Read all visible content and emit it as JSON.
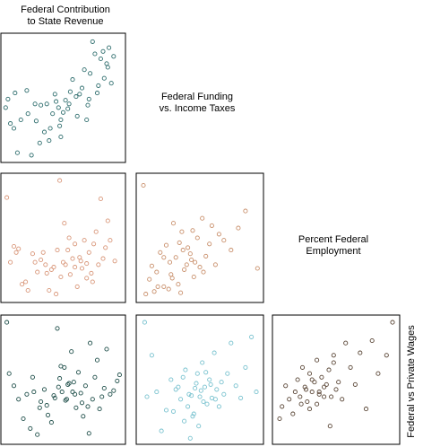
{
  "labels": {
    "v1_line1": "Federal Contribution",
    "v1_line2": "to State Revenue",
    "v2_line1": "Federal Funding",
    "v2_line2": "vs. Income Taxes",
    "v3_line1": "Percent Federal",
    "v3_line2": "Employment",
    "v4": "Federal vs Private Wages"
  },
  "colors": {
    "teal": "#2f6e6e",
    "salmon": "#d9977a",
    "sand": "#c9906c",
    "darkteal": "#1f4f4a",
    "lightblue": "#79c2cf",
    "brown": "#5a4636"
  },
  "chart_data": {
    "type": "scatter",
    "kind": "scatter-matrix-lower-triangle",
    "variables": [
      "Federal Contribution to State Revenue",
      "Federal Funding vs. Income Taxes",
      "Percent Federal Employment",
      "Federal vs Private Wages"
    ],
    "grid": false,
    "axis_tick_labels": false,
    "panels": [
      {
        "row": 1,
        "col": 1,
        "color_key": "teal",
        "x": [
          0.01,
          0.03,
          0.09,
          0.05,
          0.08,
          0.11,
          0.14,
          0.2,
          0.23,
          0.19,
          0.26,
          0.3,
          0.34,
          0.38,
          0.41,
          0.36,
          0.43,
          0.46,
          0.48,
          0.5,
          0.52,
          0.47,
          0.55,
          0.58,
          0.61,
          0.54,
          0.62,
          0.66,
          0.68,
          0.71,
          0.64,
          0.73,
          0.77,
          0.75,
          0.8,
          0.82,
          0.79,
          0.85,
          0.88,
          0.84,
          0.91,
          0.87,
          0.89,
          0.93,
          0.72,
          0.56,
          0.44,
          0.31,
          0.39,
          0.27,
          0.48,
          0.7
        ],
        "y": [
          0.42,
          0.49,
          0.54,
          0.29,
          0.25,
          0.05,
          0.32,
          0.37,
          0.03,
          0.56,
          0.45,
          0.13,
          0.22,
          0.15,
          0.37,
          0.45,
          0.53,
          0.42,
          0.32,
          0.38,
          0.48,
          0.27,
          0.45,
          0.65,
          0.51,
          0.41,
          0.35,
          0.58,
          0.73,
          0.44,
          0.53,
          0.7,
          0.86,
          0.96,
          0.6,
          0.82,
          0.54,
          0.66,
          0.75,
          0.88,
          0.62,
          0.78,
          0.91,
          0.84,
          0.49,
          0.55,
          0.47,
          0.44,
          0.25,
          0.31,
          0.18,
          0.32
        ]
      },
      {
        "row": 2,
        "col": 1,
        "color_key": "salmon",
        "x": [
          0.02,
          0.05,
          0.08,
          0.12,
          0.15,
          0.2,
          0.24,
          0.28,
          0.31,
          0.35,
          0.38,
          0.42,
          0.45,
          0.47,
          0.5,
          0.52,
          0.54,
          0.56,
          0.58,
          0.6,
          0.62,
          0.64,
          0.66,
          0.68,
          0.7,
          0.72,
          0.74,
          0.76,
          0.78,
          0.8,
          0.82,
          0.84,
          0.86,
          0.88,
          0.9,
          0.94,
          0.55,
          0.48,
          0.4,
          0.33,
          0.26,
          0.18,
          0.1,
          0.6,
          0.65,
          0.7,
          0.75,
          0.36,
          0.44,
          0.51
        ],
        "y": [
          0.83,
          0.3,
          0.43,
          0.41,
          0.12,
          0.07,
          0.37,
          0.22,
          0.32,
          0.28,
          0.07,
          0.26,
          0.4,
          0.97,
          0.3,
          0.28,
          0.4,
          0.2,
          0.33,
          0.45,
          0.1,
          0.34,
          0.25,
          0.48,
          0.17,
          0.38,
          0.21,
          0.45,
          0.55,
          0.28,
          0.82,
          0.33,
          0.42,
          0.64,
          0.48,
          0.31,
          0.5,
          0.18,
          0.24,
          0.38,
          0.3,
          0.14,
          0.38,
          0.26,
          0.31,
          0.29,
          0.14,
          0.21,
          0.04,
          0.62
        ]
      },
      {
        "row": 2,
        "col": 2,
        "color_key": "sand",
        "x": [
          0.03,
          0.05,
          0.08,
          0.1,
          0.14,
          0.17,
          0.2,
          0.22,
          0.25,
          0.28,
          0.3,
          0.33,
          0.35,
          0.37,
          0.4,
          0.42,
          0.44,
          0.46,
          0.48,
          0.5,
          0.52,
          0.55,
          0.58,
          0.6,
          0.63,
          0.66,
          0.7,
          0.76,
          0.82,
          0.88,
          0.98,
          0.24,
          0.27,
          0.32,
          0.39,
          0.45,
          0.2,
          0.15,
          0.12,
          0.36,
          0.43,
          0.53,
          0.34,
          0.26
        ],
        "y": [
          0.93,
          0.04,
          0.16,
          0.27,
          0.22,
          0.38,
          0.1,
          0.44,
          0.3,
          0.62,
          0.34,
          0.46,
          0.55,
          0.24,
          0.42,
          0.37,
          0.56,
          0.3,
          0.5,
          0.26,
          0.66,
          0.35,
          0.45,
          0.6,
          0.28,
          0.53,
          0.48,
          0.4,
          0.58,
          0.72,
          0.25,
          0.08,
          0.17,
          0.12,
          0.28,
          0.18,
          0.34,
          0.1,
          0.06,
          0.4,
          0.32,
          0.22,
          0.05,
          0.2
        ]
      },
      {
        "row": 3,
        "col": 1,
        "color_key": "darkteal",
        "x": [
          0.02,
          0.04,
          0.08,
          0.12,
          0.16,
          0.19,
          0.22,
          0.25,
          0.28,
          0.31,
          0.34,
          0.37,
          0.4,
          0.43,
          0.45,
          0.47,
          0.49,
          0.51,
          0.53,
          0.55,
          0.57,
          0.59,
          0.61,
          0.63,
          0.65,
          0.67,
          0.69,
          0.71,
          0.73,
          0.75,
          0.77,
          0.79,
          0.81,
          0.83,
          0.85,
          0.87,
          0.9,
          0.93,
          0.96,
          0.98,
          0.24,
          0.3,
          0.36,
          0.42,
          0.48,
          0.54,
          0.6,
          0.66,
          0.72,
          0.46,
          0.52,
          0.58
        ],
        "y": [
          0.97,
          0.55,
          0.45,
          0.34,
          0.18,
          0.38,
          0.1,
          0.4,
          0.05,
          0.32,
          0.42,
          0.21,
          0.15,
          0.35,
          0.92,
          0.51,
          0.4,
          0.6,
          0.34,
          0.47,
          0.73,
          0.48,
          0.27,
          0.56,
          0.39,
          0.2,
          0.45,
          0.28,
          0.8,
          0.34,
          0.52,
          0.66,
          0.26,
          0.36,
          0.43,
          0.75,
          0.38,
          0.41,
          0.49,
          0.54,
          0.52,
          0.27,
          0.29,
          0.37,
          0.61,
          0.46,
          0.38,
          0.31,
          0.06,
          0.44,
          0.33,
          0.4
        ]
      },
      {
        "row": 3,
        "col": 2,
        "color_key": "lightblue",
        "x": [
          0.04,
          0.06,
          0.1,
          0.14,
          0.18,
          0.22,
          0.26,
          0.3,
          0.34,
          0.38,
          0.41,
          0.44,
          0.46,
          0.48,
          0.5,
          0.52,
          0.54,
          0.56,
          0.58,
          0.6,
          0.62,
          0.64,
          0.66,
          0.68,
          0.7,
          0.73,
          0.76,
          0.8,
          0.84,
          0.88,
          0.93,
          0.97,
          0.28,
          0.32,
          0.36,
          0.4,
          0.43,
          0.47,
          0.51,
          0.55,
          0.59,
          0.63,
          0.37,
          0.45,
          0.53,
          0.42,
          0.49
        ],
        "y": [
          0.97,
          0.36,
          0.7,
          0.4,
          0.08,
          0.25,
          0.5,
          0.42,
          0.34,
          0.58,
          0.38,
          0.2,
          0.43,
          0.55,
          0.36,
          0.64,
          0.44,
          0.3,
          0.5,
          0.35,
          0.72,
          0.42,
          0.28,
          0.48,
          0.38,
          0.55,
          0.8,
          0.45,
          0.35,
          0.6,
          0.85,
          0.4,
          0.24,
          0.44,
          0.52,
          0.28,
          0.37,
          0.47,
          0.41,
          0.56,
          0.46,
          0.34,
          0.16,
          0.22,
          0.32,
          0.02,
          0.12
        ]
      },
      {
        "row": 3,
        "col": 3,
        "color_key": "brown",
        "x": [
          0.03,
          0.05,
          0.08,
          0.11,
          0.14,
          0.16,
          0.18,
          0.2,
          0.22,
          0.24,
          0.26,
          0.28,
          0.3,
          0.32,
          0.34,
          0.36,
          0.38,
          0.4,
          0.42,
          0.44,
          0.46,
          0.48,
          0.5,
          0.52,
          0.55,
          0.58,
          0.62,
          0.66,
          0.7,
          0.75,
          0.8,
          0.85,
          0.92,
          0.97,
          0.28,
          0.34,
          0.4,
          0.25,
          0.45,
          0.21,
          0.36,
          0.48,
          0.3
        ],
        "y": [
          0.18,
          0.28,
          0.45,
          0.34,
          0.22,
          0.4,
          0.5,
          0.36,
          0.6,
          0.44,
          0.32,
          0.55,
          0.4,
          0.48,
          0.66,
          0.38,
          0.52,
          0.44,
          0.46,
          0.58,
          0.36,
          0.7,
          0.42,
          0.48,
          0.34,
          0.8,
          0.6,
          0.46,
          0.72,
          0.26,
          0.82,
          0.55,
          0.7,
          0.97,
          0.26,
          0.3,
          0.36,
          0.42,
          0.12,
          0.3,
          0.4,
          0.64,
          0.5
        ]
      }
    ]
  }
}
